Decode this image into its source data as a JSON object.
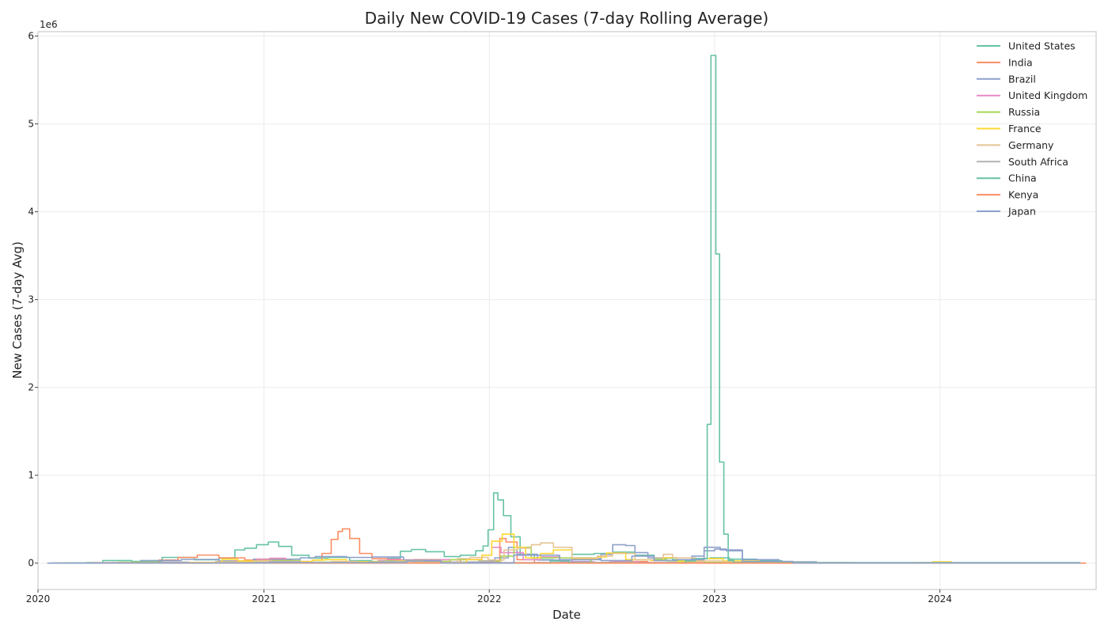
{
  "chart_data": {
    "type": "line",
    "title": "Daily New COVID-19 Cases (7-day Rolling Average)",
    "xlabel": "Date",
    "ylabel": "New Cases (7-day Avg)",
    "y_offset_label": "1e6",
    "xlim": [
      "2020-01-01",
      "2024-09-10"
    ],
    "ylim": [
      -300000,
      6050000
    ],
    "xticks": [
      "2020",
      "2021",
      "2022",
      "2023",
      "2024"
    ],
    "xtick_dates": [
      "2020-01-01",
      "2021-01-01",
      "2022-01-01",
      "2023-01-01",
      "2024-01-01"
    ],
    "yticks": [
      0,
      1000000,
      2000000,
      3000000,
      4000000,
      5000000,
      6000000
    ],
    "ytick_labels": [
      "0",
      "1",
      "2",
      "3",
      "4",
      "5",
      "6"
    ],
    "grid": true,
    "legend_position": "top-right",
    "step": true,
    "series": [
      {
        "name": "United States",
        "color": "#66c2a5",
        "x": [
          "2020-01-22",
          "2020-03-20",
          "2020-04-15",
          "2020-06-01",
          "2020-07-20",
          "2020-09-10",
          "2020-10-20",
          "2020-11-15",
          "2020-12-01",
          "2020-12-20",
          "2021-01-08",
          "2021-01-25",
          "2021-02-15",
          "2021-03-15",
          "2021-04-15",
          "2021-05-20",
          "2021-06-25",
          "2021-07-20",
          "2021-08-10",
          "2021-08-28",
          "2021-09-20",
          "2021-10-20",
          "2021-11-15",
          "2021-12-10",
          "2021-12-22",
          "2021-12-30",
          "2022-01-08",
          "2022-01-15",
          "2022-01-24",
          "2022-02-05",
          "2022-02-20",
          "2022-03-15",
          "2022-04-15",
          "2022-05-15",
          "2022-06-20",
          "2022-07-20",
          "2022-08-25",
          "2022-09-25",
          "2022-10-25",
          "2022-11-25",
          "2022-12-25",
          "2023-01-25",
          "2023-03-10",
          "2023-04-20",
          "2023-05-11",
          "2024-08-15"
        ],
        "values": [
          0,
          5000,
          30000,
          20000,
          65000,
          38000,
          55000,
          150000,
          170000,
          210000,
          240000,
          190000,
          90000,
          58000,
          65000,
          28000,
          12000,
          55000,
          135000,
          155000,
          130000,
          75000,
          90000,
          140000,
          195000,
          380000,
          800000,
          720000,
          540000,
          300000,
          100000,
          40000,
          35000,
          100000,
          110000,
          125000,
          90000,
          55000,
          40000,
          50000,
          60000,
          45000,
          28000,
          12000,
          0,
          0
        ]
      },
      {
        "name": "India",
        "color": "#fc8d62",
        "x": [
          "2020-01-30",
          "2020-03-25",
          "2020-06-01",
          "2020-07-15",
          "2020-08-15",
          "2020-09-15",
          "2020-10-20",
          "2020-12-01",
          "2021-02-15",
          "2021-03-20",
          "2021-04-05",
          "2021-04-20",
          "2021-05-01",
          "2021-05-08",
          "2021-05-20",
          "2021-06-05",
          "2021-06-25",
          "2021-07-20",
          "2021-09-01",
          "2021-11-15",
          "2022-01-05",
          "2022-01-18",
          "2022-01-28",
          "2022-02-15",
          "2022-03-15",
          "2022-07-20",
          "2022-09-15",
          "2022-12-31",
          "2024-08-15"
        ],
        "values": [
          0,
          500,
          8000,
          35000,
          65000,
          92000,
          60000,
          35000,
          12000,
          35000,
          110000,
          270000,
          360000,
          390000,
          280000,
          110000,
          50000,
          38000,
          40000,
          10000,
          15000,
          280000,
          240000,
          40000,
          5000,
          18000,
          5000,
          1000,
          0
        ]
      },
      {
        "name": "Brazil",
        "color": "#8da0cb",
        "x": [
          "2020-02-26",
          "2020-05-01",
          "2020-06-15",
          "2020-08-20",
          "2020-10-20",
          "2020-12-15",
          "2021-03-01",
          "2021-03-25",
          "2021-05-15",
          "2021-06-25",
          "2021-08-15",
          "2021-10-15",
          "2021-12-15",
          "2022-01-10",
          "2022-02-01",
          "2022-02-15",
          "2022-03-20",
          "2022-05-15",
          "2022-06-15",
          "2022-07-01",
          "2022-07-20",
          "2022-08-10",
          "2022-08-25",
          "2022-09-15",
          "2022-11-01",
          "2022-11-25",
          "2022-12-15",
          "2023-01-01",
          "2023-01-20",
          "2023-02-15",
          "2023-04-15",
          "2023-06-15",
          "2024-08-15"
        ],
        "values": [
          0,
          5000,
          30000,
          42000,
          25000,
          45000,
          60000,
          75000,
          65000,
          70000,
          35000,
          12000,
          5000,
          60000,
          180000,
          100000,
          35000,
          20000,
          50000,
          100000,
          210000,
          200000,
          120000,
          60000,
          20000,
          80000,
          140000,
          160000,
          140000,
          40000,
          15000,
          0,
          0
        ]
      },
      {
        "name": "United Kingdom",
        "color": "#e78ac3",
        "x": [
          "2020-01-31",
          "2020-03-25",
          "2020-05-15",
          "2020-08-01",
          "2020-10-15",
          "2020-11-15",
          "2020-12-20",
          "2021-01-10",
          "2021-02-05",
          "2021-03-15",
          "2021-06-01",
          "2021-07-05",
          "2021-07-20",
          "2021-08-10",
          "2021-10-15",
          "2021-11-20",
          "2021-12-20",
          "2022-01-05",
          "2022-01-20",
          "2022-02-25",
          "2022-03-25",
          "2022-04-25",
          "2022-06-20",
          "2022-07-15",
          "2022-09-01",
          "2022-12-15",
          "2023-02-15",
          "2023-05-01",
          "2024-08-15"
        ],
        "values": [
          0,
          4000,
          5000,
          1000,
          18000,
          25000,
          45000,
          55000,
          20000,
          6000,
          5000,
          30000,
          45000,
          28000,
          40000,
          42000,
          90000,
          180000,
          120000,
          40000,
          70000,
          15000,
          8000,
          15000,
          5000,
          8000,
          2000,
          0,
          0
        ]
      },
      {
        "name": "Russia",
        "color": "#a6d854",
        "x": [
          "2020-01-31",
          "2020-05-10",
          "2020-07-15",
          "2020-10-15",
          "2020-12-20",
          "2021-03-01",
          "2021-05-01",
          "2021-06-25",
          "2021-07-15",
          "2021-09-15",
          "2021-10-30",
          "2021-12-20",
          "2022-01-20",
          "2022-02-10",
          "2022-03-10",
          "2022-06-15",
          "2022-08-20",
          "2022-10-15",
          "2022-12-15",
          "2023-04-01",
          "2023-08-15",
          "2024-08-15"
        ],
        "values": [
          0,
          10000,
          6000,
          15000,
          28000,
          12000,
          9000,
          20000,
          25000,
          20000,
          40000,
          25000,
          80000,
          180000,
          60000,
          4000,
          40000,
          25000,
          8000,
          6000,
          2000,
          0
        ]
      },
      {
        "name": "France",
        "color": "#ffd92f",
        "x": [
          "2020-01-24",
          "2020-03-20",
          "2020-06-01",
          "2020-09-01",
          "2020-10-25",
          "2020-11-20",
          "2021-01-15",
          "2021-03-20",
          "2021-04-10",
          "2021-05-15",
          "2021-07-10",
          "2021-08-05",
          "2021-09-15",
          "2021-11-25",
          "2021-12-20",
          "2022-01-05",
          "2022-01-22",
          "2022-02-10",
          "2022-03-01",
          "2022-03-25",
          "2022-04-15",
          "2022-05-15",
          "2022-06-25",
          "2022-07-10",
          "2022-08-10",
          "2022-09-20",
          "2022-10-10",
          "2022-11-01",
          "2022-12-10",
          "2023-01-15",
          "2023-03-15",
          "2023-06-01",
          "2023-11-20",
          "2023-12-20",
          "2024-01-20",
          "2024-03-01",
          "2024-08-15"
        ],
        "values": [
          0,
          3000,
          500,
          8000,
          45000,
          25000,
          18000,
          35000,
          40000,
          15000,
          8000,
          25000,
          8000,
          40000,
          90000,
          250000,
          330000,
          180000,
          60000,
          110000,
          150000,
          50000,
          70000,
          115000,
          40000,
          30000,
          60000,
          20000,
          50000,
          25000,
          6000,
          1000,
          5000,
          15000,
          3000,
          1000,
          0
        ]
      },
      {
        "name": "Germany",
        "color": "#e5c494",
        "x": [
          "2020-01-27",
          "2020-04-01",
          "2020-06-01",
          "2020-10-15",
          "2020-12-15",
          "2021-01-15",
          "2021-03-01",
          "2021-04-20",
          "2021-06-01",
          "2021-09-01",
          "2021-11-10",
          "2021-12-01",
          "2021-12-30",
          "2022-01-25",
          "2022-02-15",
          "2022-03-10",
          "2022-03-25",
          "2022-04-15",
          "2022-05-15",
          "2022-06-25",
          "2022-07-20",
          "2022-08-25",
          "2022-09-25",
          "2022-10-10",
          "2022-10-25",
          "2022-12-01",
          "2023-01-15",
          "2023-04-20",
          "2024-08-15"
        ],
        "values": [
          0,
          5000,
          500,
          10000,
          25000,
          18000,
          8000,
          20000,
          3000,
          8000,
          50000,
          65000,
          35000,
          150000,
          170000,
          210000,
          230000,
          180000,
          60000,
          80000,
          110000,
          40000,
          60000,
          100000,
          60000,
          25000,
          15000,
          1000,
          0
        ]
      },
      {
        "name": "South Africa",
        "color": "#b3b3b3",
        "x": [
          "2020-03-05",
          "2020-06-01",
          "2020-07-20",
          "2020-09-01",
          "2020-12-20",
          "2021-01-10",
          "2021-03-01",
          "2021-06-20",
          "2021-07-10",
          "2021-09-01",
          "2021-11-25",
          "2021-12-15",
          "2022-01-10",
          "2022-04-25",
          "2022-05-20",
          "2022-07-01",
          "2023-01-01",
          "2024-08-15"
        ],
        "values": [
          0,
          2000,
          12000,
          2000,
          9000,
          18000,
          1000,
          12000,
          20000,
          3000,
          1000,
          25000,
          5000,
          3000,
          8000,
          500,
          300,
          0
        ]
      },
      {
        "name": "China",
        "color": "#66c2a5",
        "x": [
          "2020-01-22",
          "2020-02-20",
          "2020-04-01",
          "2022-03-20",
          "2022-04-10",
          "2022-05-10",
          "2022-06-15",
          "2022-11-15",
          "2022-12-01",
          "2022-12-20",
          "2022-12-26",
          "2023-01-03",
          "2023-01-09",
          "2023-01-16",
          "2023-01-23",
          "2023-02-01",
          "2024-08-15"
        ],
        "values": [
          0,
          3000,
          200,
          1500,
          25000,
          6000,
          1000,
          25000,
          50000,
          1580000,
          5780000,
          3520000,
          1150000,
          330000,
          30000,
          5000,
          0
        ]
      },
      {
        "name": "Kenya",
        "color": "#fc8d62",
        "x": [
          "2020-03-13",
          "2020-07-15",
          "2020-11-20",
          "2021-03-25",
          "2021-07-25",
          "2021-12-25",
          "2022-03-01",
          "2024-08-25"
        ],
        "values": [
          0,
          500,
          1100,
          1200,
          1000,
          2200,
          200,
          0
        ]
      },
      {
        "name": "Japan",
        "color": "#8da0cb",
        "x": [
          "2020-01-16",
          "2020-04-15",
          "2020-08-05",
          "2021-01-10",
          "2021-05-10",
          "2021-08-20",
          "2021-10-15",
          "2022-01-01",
          "2022-02-10",
          "2022-04-25",
          "2022-07-01",
          "2022-08-20",
          "2022-09-25",
          "2022-11-01",
          "2022-12-15",
          "2023-01-10",
          "2023-02-15",
          "2023-05-08",
          "2024-08-15"
        ],
        "values": [
          0,
          500,
          1300,
          6500,
          6000,
          24000,
          500,
          400,
          90000,
          40000,
          30000,
          80000,
          30000,
          40000,
          180000,
          150000,
          20000,
          1000,
          0
        ]
      }
    ]
  }
}
